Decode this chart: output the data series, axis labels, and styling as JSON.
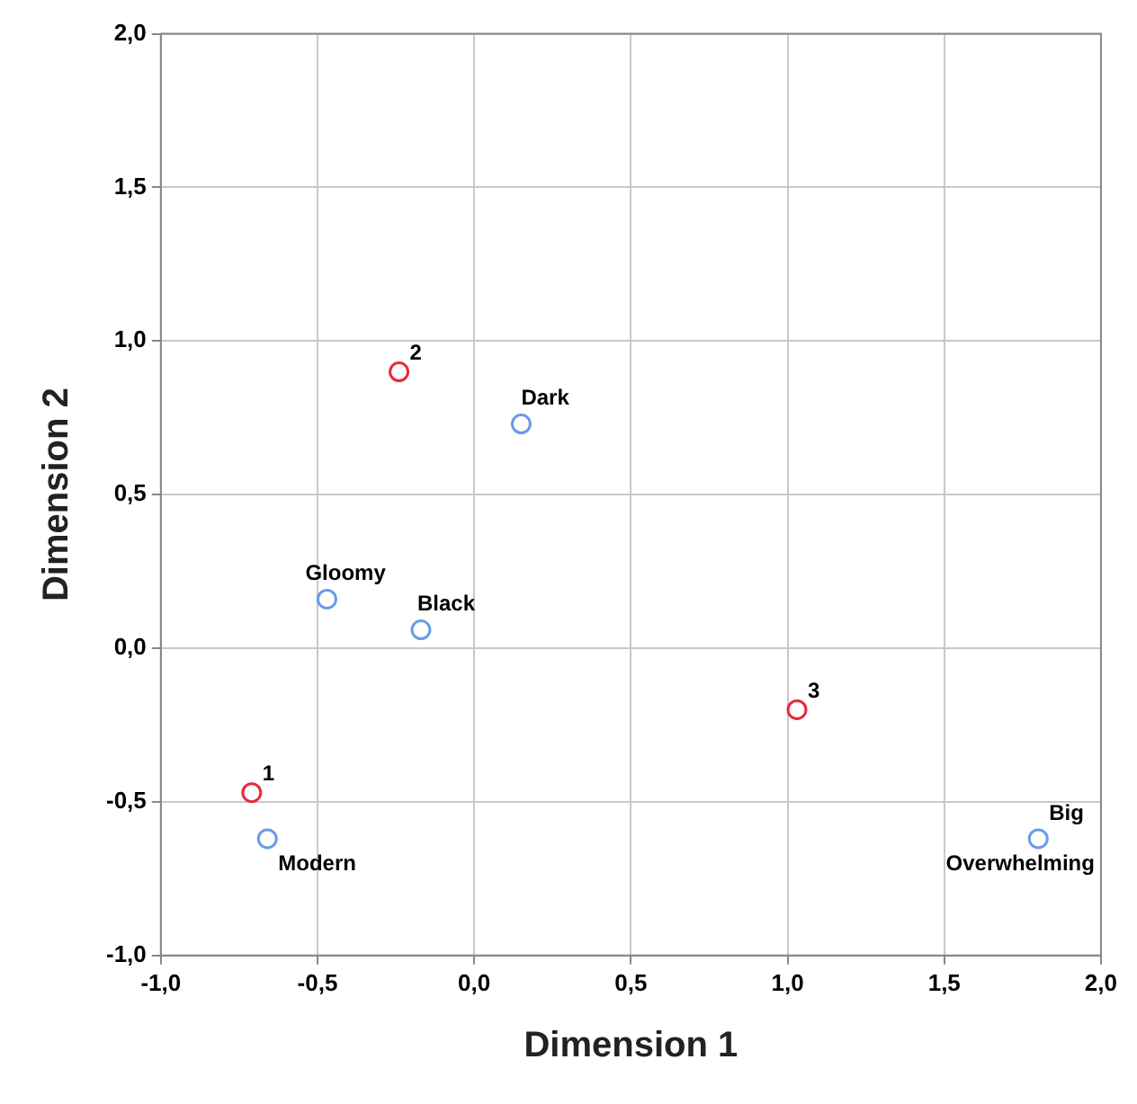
{
  "chart_data": {
    "type": "scatter",
    "xlabel": "Dimension 1",
    "ylabel": "Dimension 2",
    "series": [
      {
        "color": "#e8283c",
        "x": [
          -0.71,
          -0.24,
          1.03
        ],
        "values": [
          -0.47,
          0.9,
          -0.2
        ]
      },
      {
        "color": "#6a9be8",
        "x": [
          0.15,
          -0.47,
          -0.17,
          -0.66,
          1.8
        ],
        "values": [
          0.73,
          0.16,
          0.06,
          -0.62,
          -0.62
        ]
      }
    ],
    "annotations": [
      {
        "text": "1",
        "x": -0.71,
        "y": -0.47
      },
      {
        "text": "2",
        "x": -0.24,
        "y": 0.9
      },
      {
        "text": "3",
        "x": 1.03,
        "y": -0.2
      },
      {
        "text": "Dark",
        "x": 0.15,
        "y": 0.73
      },
      {
        "text": "Gloomy",
        "x": -0.47,
        "y": 0.16
      },
      {
        "text": "Black",
        "x": -0.17,
        "y": 0.06
      },
      {
        "text": "Modern",
        "x": -0.66,
        "y": -0.62
      },
      {
        "text": "Big",
        "x": 1.8,
        "y": -0.62
      },
      {
        "text": "Overwhelming",
        "x": 1.8,
        "y": -0.62
      }
    ],
    "xlim": [
      -1,
      2
    ],
    "ylim": [
      -1,
      2
    ],
    "xticks": [
      {
        "value": -1,
        "label": "-1,0"
      },
      {
        "value": -0.5,
        "label": "-0,5"
      },
      {
        "value": 0,
        "label": "0,0"
      },
      {
        "value": 0.5,
        "label": "0,5"
      },
      {
        "value": 1,
        "label": "1,0"
      },
      {
        "value": 1.5,
        "label": "1,5"
      },
      {
        "value": 2,
        "label": "2,0"
      }
    ],
    "yticks": [
      {
        "value": -1,
        "label": "-1,0"
      },
      {
        "value": -0.5,
        "label": "-0,5"
      },
      {
        "value": 0,
        "label": "0,0"
      },
      {
        "value": 0.5,
        "label": "0,5"
      },
      {
        "value": 1,
        "label": "1,0"
      },
      {
        "value": 1.5,
        "label": "1,5"
      },
      {
        "value": 2,
        "label": "2,0"
      }
    ],
    "grid": true,
    "legend": false,
    "marker": "circle"
  }
}
